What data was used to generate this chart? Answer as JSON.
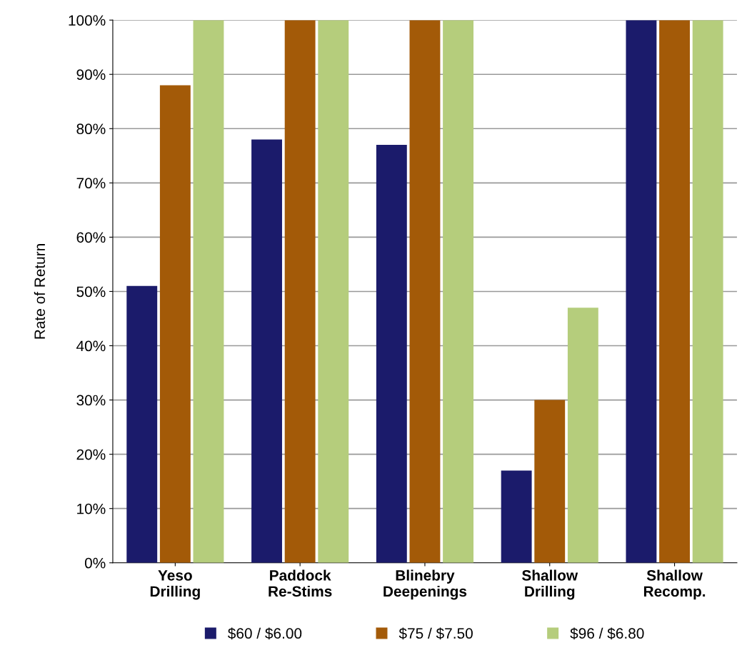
{
  "chart_data": {
    "type": "bar",
    "ylabel": "Rate of Return",
    "categories": [
      "Yeso\nDrilling",
      "Paddock\nRe-Stims",
      "Blinebry\nDeepenings",
      "Shallow\nDrilling",
      "Shallow\nRecomp."
    ],
    "series": [
      {
        "name": "$60 / $6.00",
        "color": "#1b1b6b",
        "values": [
          51,
          78,
          77,
          17,
          100
        ]
      },
      {
        "name": "$75 / $7.50",
        "color": "#a35a08",
        "values": [
          88,
          100,
          100,
          30,
          100
        ]
      },
      {
        "name": "$96 / $6.80",
        "color": "#b5cd7c",
        "values": [
          100,
          100,
          100,
          47,
          100
        ]
      }
    ],
    "ylim": [
      0,
      100
    ],
    "yticks": [
      {
        "value": 0,
        "label": "0%"
      },
      {
        "value": 10,
        "label": "10%"
      },
      {
        "value": 20,
        "label": "20%"
      },
      {
        "value": 30,
        "label": "30%"
      },
      {
        "value": 40,
        "label": "40%"
      },
      {
        "value": 50,
        "label": "50%"
      },
      {
        "value": 60,
        "label": "60%"
      },
      {
        "value": 70,
        "label": "70%"
      },
      {
        "value": 80,
        "label": "80%"
      },
      {
        "value": 90,
        "label": "90%"
      },
      {
        "value": 100,
        "label": "100%"
      }
    ],
    "grid": "y",
    "legend": "bottom"
  }
}
